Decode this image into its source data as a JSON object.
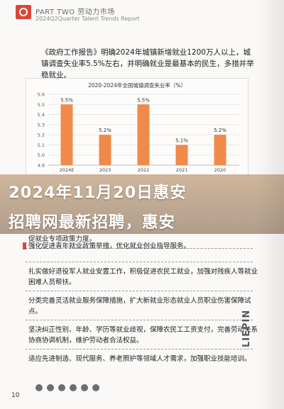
{
  "header": {
    "title": "PART TWO 劳动力市场",
    "subtitle": "2024Q2Quarter Talent Trends Report"
  },
  "intro_text": "《政府工作报告》明确2024年城镇新增就业1200万人以上，城镇调查失业率5.5%左右，并明确就业是最基本的民生，多措并举稳就业。",
  "chart_data": {
    "type": "bar",
    "title": "2020-2024年全国城镇调查失业率（%）",
    "categories": [
      "2024E",
      "2023",
      "2022",
      "2021",
      "2020"
    ],
    "values": [
      5.5,
      5.2,
      5.5,
      5.1,
      5.2
    ],
    "data_labels": [
      "5.5%",
      "5.2%",
      "5.5%",
      "5.1%",
      "5.2%"
    ],
    "ylim": [
      4.9,
      5.6
    ],
    "yticks": [
      "5.6",
      "5.5",
      "5.4",
      "5.3",
      "5.2",
      "5.1",
      "5.0",
      "4.9"
    ],
    "bar_color": "#f08a4b",
    "grid": true
  },
  "banner": {
    "line1": "2024年11月20日惠安",
    "line2": "招聘网最新招聘，惠安"
  },
  "list_items": [
    "促就业专项政策力度。",
    "强化促进青年就业政策举措，优化就业创业指导服务。",
    "扎实做好退役军人就业安置工作，积极促进农民工就业，加强对残疾人等就业困难人员帮扶。",
    "分类完善灵活就业服务保障措施，扩大新就业形态就业人员职业伤害保障试点。",
    "坚决纠正性别、年龄、学历等就业歧视，保障农民工工资支付，完善劳动关系协商协调机制，维护劳动者合法权益。",
    "适应先进制造、现代服务、养老照护等领域人才需求，加强职业技能培训。"
  ],
  "page_number": "10",
  "brand": "LIEPIN",
  "colors": {
    "accent": "#d9463a",
    "bar": "#f08a4b"
  }
}
